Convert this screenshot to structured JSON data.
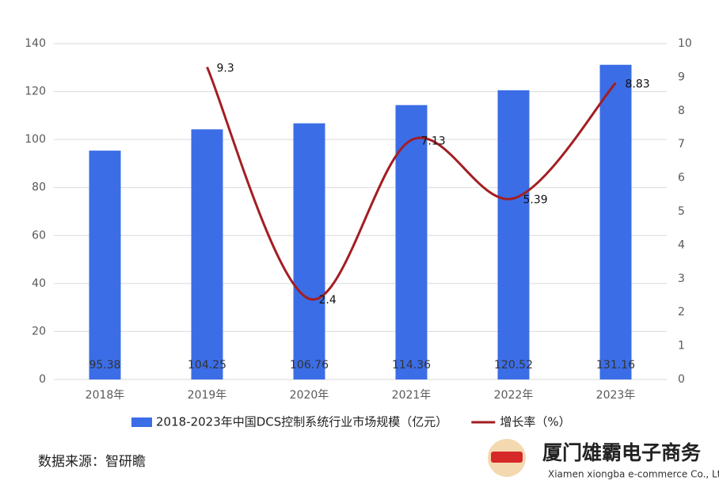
{
  "chart_data": {
    "type": "bar",
    "categories": [
      "2018年",
      "2019年",
      "2020年",
      "2021年",
      "2022年",
      "2023年"
    ],
    "series": [
      {
        "name": "2018-2023年中国DCS控制系统行业市场规模（亿元）",
        "type": "bar",
        "color": "#3b6de6",
        "values": [
          95.38,
          104.25,
          106.76,
          114.36,
          120.52,
          131.16
        ]
      },
      {
        "name": "增长率（%）",
        "type": "line",
        "axis": "y2",
        "color": "#a31e22",
        "values": [
          null,
          9.3,
          2.4,
          7.13,
          5.39,
          8.83
        ]
      }
    ],
    "ylim": [
      0,
      140
    ],
    "yticks": [
      0,
      20,
      40,
      60,
      80,
      100,
      120,
      140
    ],
    "y2lim": [
      0,
      10
    ],
    "y2ticks": [
      0,
      1,
      2,
      3,
      4,
      5,
      6,
      7,
      8,
      9,
      10
    ],
    "grid": true,
    "legend": "bottom",
    "source": "数据来源：智研瞻",
    "watermark": {
      "title": "厦门雄霸电子商务",
      "subtitle": "Xiamen xiongba e-commerce Co., Ltd"
    }
  }
}
